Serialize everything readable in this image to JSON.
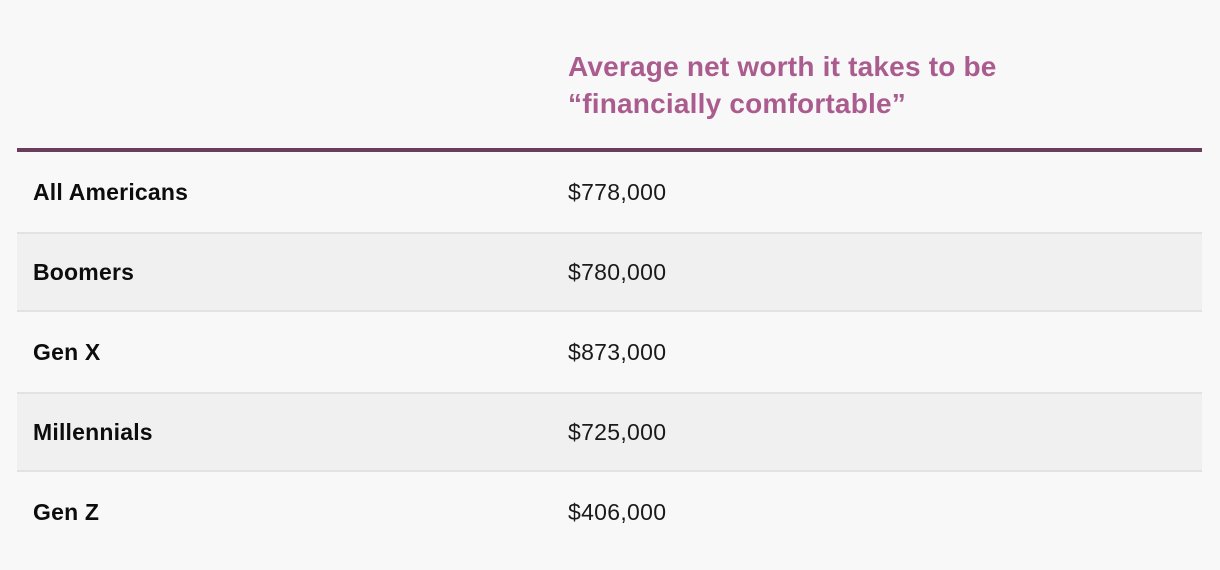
{
  "table": {
    "header": {
      "col1": "",
      "col2": "Average net worth it takes to be “financially comfortable”"
    },
    "rows": [
      {
        "label": "All Americans",
        "value": "$778,000"
      },
      {
        "label": "Boomers",
        "value": "$780,000"
      },
      {
        "label": "Gen X",
        "value": "$873,000"
      },
      {
        "label": "Millennials",
        "value": "$725,000"
      },
      {
        "label": "Gen Z",
        "value": "$406,000"
      }
    ]
  },
  "chart_data": {
    "type": "table",
    "title": "Average net worth it takes to be “financially comfortable”",
    "categories": [
      "All Americans",
      "Boomers",
      "Gen X",
      "Millennials",
      "Gen Z"
    ],
    "values": [
      778000,
      780000,
      873000,
      725000,
      406000
    ],
    "value_format": "USD",
    "layout": "two-column table, zebra striped rows, header on value column only"
  },
  "colors": {
    "page_background": "#f8f8f8",
    "header_text": "#ab5c8f",
    "divider": "#6a3c5d",
    "stripe_background": "#f0f0f0",
    "stripe_border": "#e2e2e2",
    "label_text": "#0d0d0d",
    "value_text": "#1a1a1a"
  }
}
